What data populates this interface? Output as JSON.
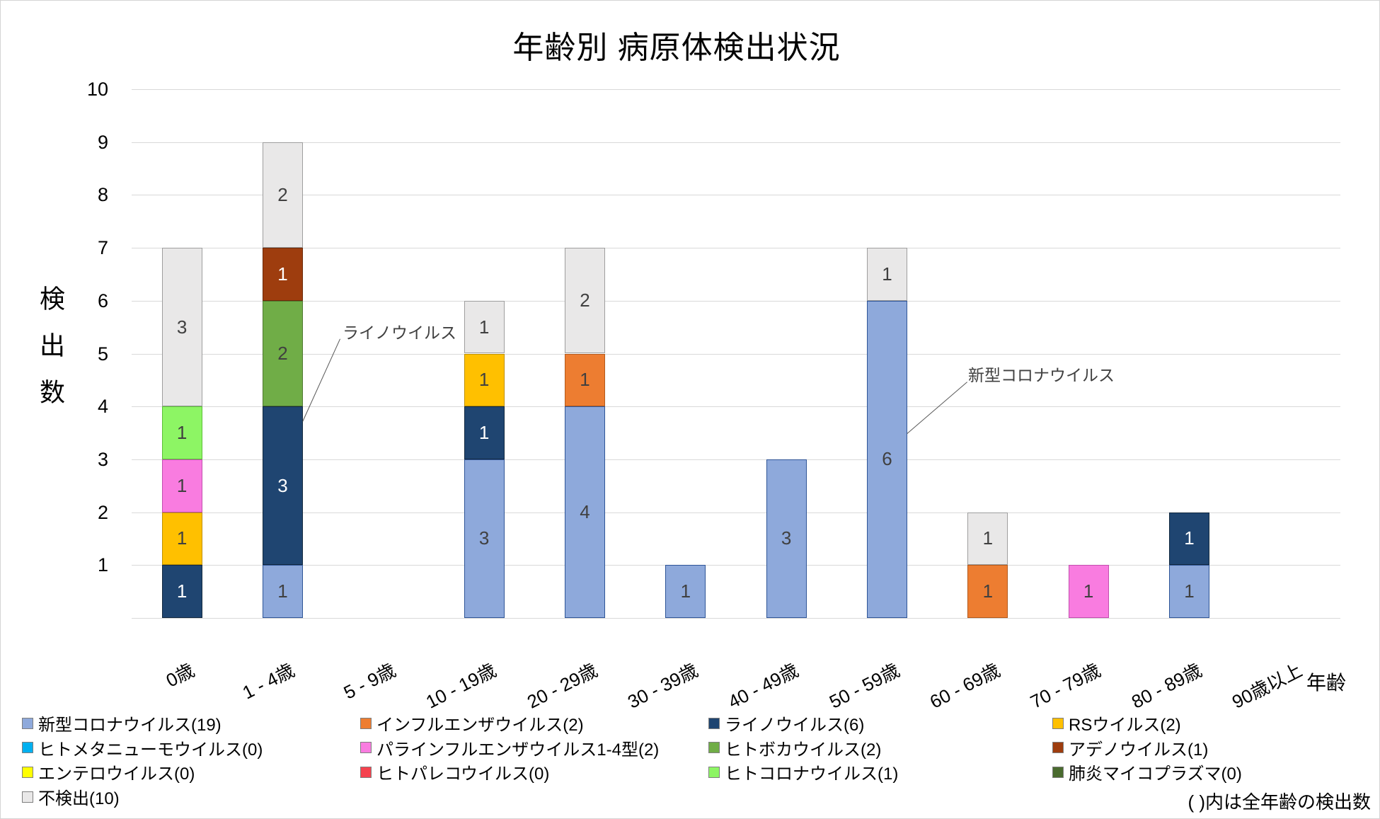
{
  "chart_title": "年齢別 病原体検出状況",
  "y_axis": {
    "title": "検出数",
    "ticks": [
      "1",
      "2",
      "3",
      "4",
      "5",
      "6",
      "7",
      "8",
      "9",
      "10"
    ]
  },
  "x_axis": {
    "title": "年齢"
  },
  "footnote": "( )内は全年齢の検出数",
  "annotations": [
    {
      "text": "ライノウイルス"
    },
    {
      "text": "新型コロナウイルス"
    }
  ],
  "chart_data": {
    "type": "bar",
    "stacked": true,
    "title": "年齢別 病原体検出状況",
    "xlabel": "年齢",
    "ylabel": "検出数",
    "ylim": [
      0,
      10
    ],
    "grid": true,
    "legend_position": "bottom",
    "categories": [
      "0歳",
      "1 - 4歳",
      "5 - 9歳",
      "10 - 19歳",
      "20 - 29歳",
      "30 - 39歳",
      "40 - 49歳",
      "50 - 59歳",
      "60 - 69歳",
      "70 - 79歳",
      "80 - 89歳",
      "90歳以上"
    ],
    "series": [
      {
        "name": "新型コロナウイルス",
        "legend_label": "新型コロナウイルス(19)",
        "total": 19,
        "color": "#8EA9DB",
        "border": "#2F5597",
        "label_color": "#404040",
        "values": [
          0,
          1,
          0,
          3,
          4,
          1,
          3,
          6,
          0,
          0,
          1,
          0
        ]
      },
      {
        "name": "インフルエンザウイルス",
        "legend_label": "インフルエンザウイルス(2)",
        "total": 2,
        "color": "#ED7D31",
        "border": "#B35A1C",
        "label_color": "#404040",
        "values": [
          0,
          0,
          0,
          0,
          1,
          0,
          0,
          0,
          1,
          0,
          0,
          0
        ]
      },
      {
        "name": "ライノウイルス",
        "legend_label": "ライノウイルス(6)",
        "total": 6,
        "color": "#1F4571",
        "border": "#13293F",
        "label_color": "#FFFFFF",
        "values": [
          1,
          3,
          0,
          1,
          0,
          0,
          0,
          0,
          0,
          0,
          1,
          0
        ]
      },
      {
        "name": "RSウイルス",
        "legend_label": "RSウイルス(2)",
        "total": 2,
        "color": "#FFC000",
        "border": "#BF9000",
        "label_color": "#404040",
        "values": [
          1,
          0,
          0,
          1,
          0,
          0,
          0,
          0,
          0,
          0,
          0,
          0
        ]
      },
      {
        "name": "ヒトメタニューモウイルス",
        "legend_label": "ヒトメタニューモウイルス(0)",
        "total": 0,
        "color": "#00B0F0",
        "border": "#0083B4",
        "label_color": "#404040",
        "values": [
          0,
          0,
          0,
          0,
          0,
          0,
          0,
          0,
          0,
          0,
          0,
          0
        ]
      },
      {
        "name": "パラインフルエンザウイルス1-4型",
        "legend_label": "パラインフルエンザウイルス1-4型(2)",
        "total": 2,
        "color": "#F97CE0",
        "border": "#C24FAE",
        "label_color": "#404040",
        "values": [
          1,
          0,
          0,
          0,
          0,
          0,
          0,
          0,
          0,
          1,
          0,
          0
        ]
      },
      {
        "name": "ヒトボカウイルス",
        "legend_label": "ヒトボカウイルス(2)",
        "total": 2,
        "color": "#70AD47",
        "border": "#507A32",
        "label_color": "#404040",
        "values": [
          0,
          2,
          0,
          0,
          0,
          0,
          0,
          0,
          0,
          0,
          0,
          0
        ]
      },
      {
        "name": "アデノウイルス",
        "legend_label": "アデノウイルス(1)",
        "total": 1,
        "color": "#9E3D0E",
        "border": "#6E2A09",
        "label_color": "#FFFFFF",
        "values": [
          0,
          1,
          0,
          0,
          0,
          0,
          0,
          0,
          0,
          0,
          0,
          0
        ]
      },
      {
        "name": "エンテロウイルス",
        "legend_label": "エンテロウイルス(0)",
        "total": 0,
        "color": "#FFFF00",
        "border": "#BFBF00",
        "label_color": "#404040",
        "values": [
          0,
          0,
          0,
          0,
          0,
          0,
          0,
          0,
          0,
          0,
          0,
          0
        ]
      },
      {
        "name": "ヒトパレコウイルス",
        "legend_label": "ヒトパレコウイルス(0)",
        "total": 0,
        "color": "#F4424E",
        "border": "#B42F38",
        "label_color": "#404040",
        "values": [
          0,
          0,
          0,
          0,
          0,
          0,
          0,
          0,
          0,
          0,
          0,
          0
        ]
      },
      {
        "name": "ヒトコロナウイルス",
        "legend_label": "ヒトコロナウイルス(1)",
        "total": 1,
        "color": "#8DF564",
        "border": "#5CBE38",
        "label_color": "#404040",
        "values": [
          1,
          0,
          0,
          0,
          0,
          0,
          0,
          0,
          0,
          0,
          0,
          0
        ]
      },
      {
        "name": "肺炎マイコプラズマ",
        "legend_label": "肺炎マイコプラズマ(0)",
        "total": 0,
        "color": "#4A6B2F",
        "border": "#324920",
        "label_color": "#FFFFFF",
        "values": [
          0,
          0,
          0,
          0,
          0,
          0,
          0,
          0,
          0,
          0,
          0,
          0
        ]
      },
      {
        "name": "不検出",
        "legend_label": "不検出(10)",
        "total": 10,
        "color": "#E9E8E8",
        "border": "#9E9E9E",
        "label_color": "#404040",
        "values": [
          3,
          2,
          0,
          1,
          2,
          0,
          0,
          1,
          1,
          0,
          0,
          0
        ]
      }
    ]
  }
}
